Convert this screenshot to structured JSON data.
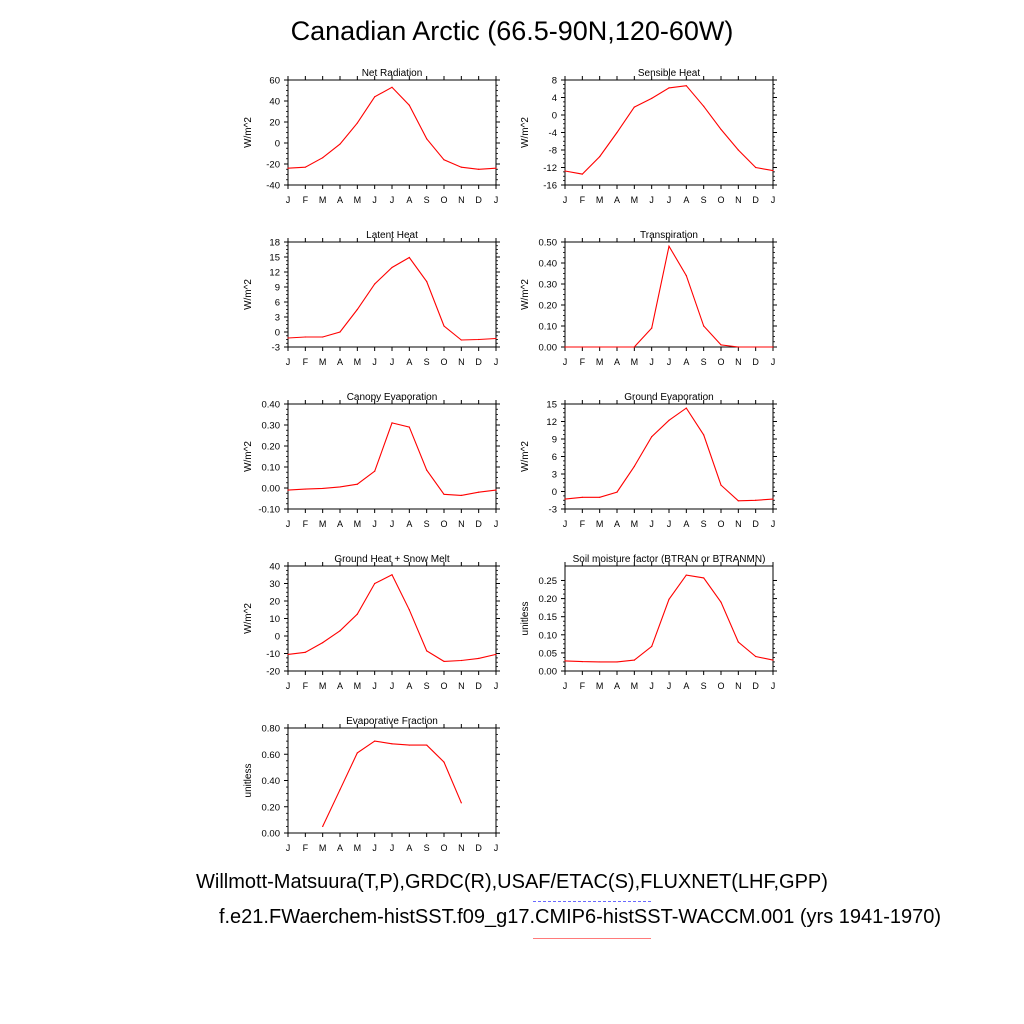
{
  "title": "Canadian Arctic (66.5-90N,120-60W)",
  "legend": {
    "observations": "Willmott-Matsuura(T,P),GRDC(R),USAF/ETAC(S),FLUXNET(LHF,GPP)",
    "model": "f.e21.FWaerchem-histSST.f09_g17.CMIP6-histSST-WACCM.001 (yrs 1941-1970)",
    "observations_color": "#6a6aff",
    "model_color": "#ff0000"
  },
  "chart_data": [
    {
      "type": "line",
      "title": "Net Radiation",
      "ylabel": "W/m^2",
      "categories": [
        "J",
        "F",
        "M",
        "A",
        "M",
        "J",
        "J",
        "A",
        "S",
        "O",
        "N",
        "D",
        "J"
      ],
      "ylim": [
        -40,
        60
      ],
      "yticks": [
        "-40",
        "-20",
        "0",
        "20",
        "40",
        "60"
      ],
      "values": [
        -24,
        -23,
        -14,
        -1,
        19,
        44,
        53,
        36,
        4,
        -16,
        -23,
        -25,
        -24
      ]
    },
    {
      "type": "line",
      "title": "Sensible Heat",
      "ylabel": "W/m^2",
      "categories": [
        "J",
        "F",
        "M",
        "A",
        "M",
        "J",
        "J",
        "A",
        "S",
        "O",
        "N",
        "D",
        "J"
      ],
      "ylim": [
        -16,
        8
      ],
      "yticks": [
        "-16",
        "-12",
        "-8",
        "-4",
        "0",
        "4",
        "8"
      ],
      "values": [
        -12.8,
        -13.5,
        -9.5,
        -4.0,
        1.8,
        3.8,
        6.2,
        6.7,
        2.0,
        -3.3,
        -8.0,
        -12.0,
        -12.7
      ]
    },
    {
      "type": "line",
      "title": "Latent Heat",
      "ylabel": "W/m^2",
      "categories": [
        "J",
        "F",
        "M",
        "A",
        "M",
        "J",
        "J",
        "A",
        "S",
        "O",
        "N",
        "D",
        "J"
      ],
      "ylim": [
        -3,
        18
      ],
      "yticks": [
        "-3",
        "0",
        "3",
        "6",
        "9",
        "12",
        "15",
        "18"
      ],
      "values": [
        -1.2,
        -1.0,
        -1.0,
        0.0,
        4.5,
        9.6,
        12.9,
        14.9,
        10.1,
        1.2,
        -1.6,
        -1.5,
        -1.3
      ]
    },
    {
      "type": "line",
      "title": "Transpiration",
      "ylabel": "W/m^2",
      "categories": [
        "J",
        "F",
        "M",
        "A",
        "M",
        "J",
        "J",
        "A",
        "S",
        "O",
        "N",
        "D",
        "J"
      ],
      "ylim": [
        0,
        0.5
      ],
      "yticks": [
        "0.00",
        "0.10",
        "0.20",
        "0.30",
        "0.40",
        "0.50"
      ],
      "values": [
        0,
        0,
        0,
        0,
        0.0,
        0.09,
        0.48,
        0.34,
        0.1,
        0.01,
        0,
        0,
        0
      ]
    },
    {
      "type": "line",
      "title": "Canopy Evaporation",
      "ylabel": "W/m^2",
      "categories": [
        "J",
        "F",
        "M",
        "A",
        "M",
        "J",
        "J",
        "A",
        "S",
        "O",
        "N",
        "D",
        "J"
      ],
      "ylim": [
        -0.1,
        0.4
      ],
      "yticks": [
        "-0.10",
        "0.00",
        "0.10",
        "0.20",
        "0.30",
        "0.40"
      ],
      "values": [
        -0.01,
        -0.005,
        -0.002,
        0.005,
        0.018,
        0.08,
        0.31,
        0.29,
        0.085,
        -0.03,
        -0.035,
        -0.02,
        -0.01
      ]
    },
    {
      "type": "line",
      "title": "Ground Evaporation",
      "ylabel": "W/m^2",
      "categories": [
        "J",
        "F",
        "M",
        "A",
        "M",
        "J",
        "J",
        "A",
        "S",
        "O",
        "N",
        "D",
        "J"
      ],
      "ylim": [
        -3,
        15
      ],
      "yticks": [
        "-3",
        "0",
        "3",
        "6",
        "9",
        "12",
        "15"
      ],
      "values": [
        -1.3,
        -1.0,
        -1.0,
        -0.1,
        4.3,
        9.4,
        12.2,
        14.3,
        9.7,
        1.1,
        -1.6,
        -1.5,
        -1.3
      ]
    },
    {
      "type": "line",
      "title": "Ground Heat + Snow Melt",
      "ylabel": "W/m^2",
      "categories": [
        "J",
        "F",
        "M",
        "A",
        "M",
        "J",
        "J",
        "A",
        "S",
        "O",
        "N",
        "D",
        "J"
      ],
      "ylim": [
        -20,
        40
      ],
      "yticks": [
        "-20",
        "-10",
        "0",
        "10",
        "20",
        "30",
        "40"
      ],
      "values": [
        -10.5,
        -9.3,
        -3.8,
        3.0,
        12.5,
        30.0,
        35.0,
        15.0,
        -8.5,
        -14.5,
        -14.0,
        -12.8,
        -10.5
      ]
    },
    {
      "type": "line",
      "title": "Soil moisture factor (BTRAN or BTRANMN)",
      "ylabel": "unitless",
      "categories": [
        "J",
        "F",
        "M",
        "A",
        "M",
        "J",
        "J",
        "A",
        "S",
        "O",
        "N",
        "D",
        "J"
      ],
      "ylim": [
        0,
        0.29
      ],
      "yticks": [
        "0.00",
        "0.05",
        "0.10",
        "0.15",
        "0.20",
        "0.25"
      ],
      "values": [
        0.028,
        0.026,
        0.025,
        0.025,
        0.03,
        0.068,
        0.198,
        0.265,
        0.257,
        0.19,
        0.08,
        0.04,
        0.03
      ]
    },
    {
      "type": "line",
      "title": "Evaporative Fraction",
      "ylabel": "unitless",
      "categories": [
        "J",
        "F",
        "M",
        "A",
        "M",
        "J",
        "J",
        "A",
        "S",
        "O",
        "N",
        "D",
        "J"
      ],
      "ylim": [
        0,
        0.8
      ],
      "yticks": [
        "0.00",
        "0.20",
        "0.40",
        "0.60",
        "0.80"
      ],
      "values": [
        null,
        null,
        0.05,
        0.33,
        0.61,
        0.7,
        0.68,
        0.67,
        0.67,
        0.54,
        0.23,
        null,
        null
      ]
    }
  ]
}
